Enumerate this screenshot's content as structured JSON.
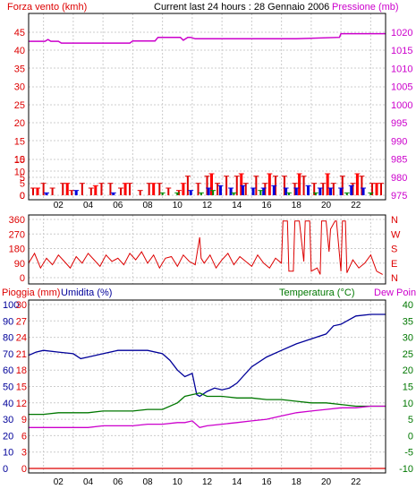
{
  "colors": {
    "wind": "#dd0000",
    "gust": "#ff0000",
    "wind_avg": "#0000dd",
    "wind_low": "#008800",
    "pressure": "#cc00cc",
    "direction": "#dd0000",
    "rain": "#dd0000",
    "humidity": "#000099",
    "temperature": "#007700",
    "dewpoint": "#cc00cc",
    "grid": "#cccccc",
    "axis": "#000000"
  },
  "chart_data": [
    {
      "type": "line",
      "header_left": "Forza vento (kmh)",
      "title": "Current last 24 hours : 28 Gennaio 2006",
      "header_right": "Pressione (mb)",
      "x_ticks": [
        "02",
        "04",
        "06",
        "08",
        "10",
        "12",
        "14",
        "16",
        "18",
        "20",
        "22"
      ],
      "x_tick_hours": [
        2,
        4,
        6,
        8,
        10,
        12,
        14,
        16,
        18,
        20,
        22
      ],
      "xlim_hours": [
        0,
        24
      ],
      "grid": true,
      "left_axis": {
        "label": "Forza vento (kmh)",
        "segments": [
          {
            "ticks": [
              "0",
              "5",
              "10",
              "15",
              "20",
              "25",
              "30",
              "35",
              "40",
              "45"
            ],
            "tick_values": [
              0,
              5,
              10,
              15,
              20,
              25,
              30,
              35,
              40,
              45
            ]
          },
          {
            "ticks": [
              "0",
              "5",
              "10",
              "15"
            ],
            "tick_values": [
              0,
              5,
              10,
              15
            ]
          }
        ],
        "ylim": [
          0,
          45
        ]
      },
      "right_axis": {
        "label": "Pressione (mb)",
        "ticks": [
          "1020",
          "1015",
          "1010",
          "1005",
          "1000",
          "995",
          "990",
          "985",
          "980",
          "975"
        ],
        "tick_values": [
          1020,
          1015,
          1010,
          1005,
          1000,
          995,
          990,
          985,
          980,
          975
        ],
        "ylim": [
          975,
          1020
        ]
      },
      "series": [
        {
          "key": "pressure",
          "axis": "right",
          "x": [
            0,
            1.1,
            1.3,
            1.5,
            2.0,
            2.2,
            6.8,
            7.0,
            8.5,
            8.7,
            10.2,
            10.4,
            10.7,
            10.9,
            11.2,
            18.0,
            20.9,
            21.0,
            24
          ],
          "y": [
            1017.5,
            1017.5,
            1018,
            1017.5,
            1017.5,
            1017,
            1017,
            1017.6,
            1017.6,
            1018.6,
            1018.6,
            1017.8,
            1018.6,
            1018.6,
            1018.2,
            1018.2,
            1018.6,
            1019.6,
            1019.6
          ]
        },
        {
          "key": "wind",
          "axis": "left",
          "style": "bars",
          "x": [
            0.3,
            1.0,
            1.6,
            2.3,
            2.9,
            3.6,
            4.2,
            4.9,
            5.5,
            6.2,
            6.8,
            7.5,
            8.1,
            8.8,
            9.4,
            10.1,
            10.7,
            11.4,
            12.0,
            12.7,
            13.3,
            14.0,
            14.6,
            15.3,
            15.9,
            16.6,
            17.2,
            17.9,
            18.5,
            19.2,
            19.8,
            20.5,
            21.1,
            21.8,
            22.4,
            23.1,
            23.7
          ],
          "y": [
            3,
            5,
            3,
            5,
            2,
            5,
            3,
            5,
            5,
            3,
            5,
            2,
            5,
            5,
            3,
            2,
            8,
            5,
            8,
            5,
            8,
            8,
            5,
            8,
            5,
            8,
            8,
            5,
            8,
            5,
            5,
            5,
            8,
            5,
            8,
            5,
            5
          ]
        },
        {
          "key": "gust",
          "axis": "left",
          "style": "bars",
          "x": [
            0.6,
            2.6,
            4.5,
            6.5,
            8.4,
            10.4,
            12.3,
            14.3,
            16.2,
            18.2,
            20.1,
            22.1,
            23.4
          ],
          "y": [
            3,
            5,
            4,
            5,
            5,
            5,
            9,
            9,
            9,
            9,
            9,
            9,
            5
          ]
        },
        {
          "key": "wind_avg",
          "axis": "left",
          "style": "bars",
          "x": [
            1.2,
            3.2,
            5.7,
            10.9,
            12.1,
            12.9,
            13.6,
            14.4,
            15.1,
            15.8,
            16.5,
            17.3,
            18.0,
            18.8,
            19.6,
            20.3,
            21.0,
            21.7,
            22.5
          ],
          "y": [
            1,
            2,
            1,
            2,
            3,
            4,
            3,
            4,
            3,
            3,
            4,
            3,
            3,
            4,
            3,
            3,
            3,
            4,
            3
          ]
        },
        {
          "key": "wind_low",
          "axis": "left",
          "style": "bars",
          "x": [
            9.0,
            10.0,
            11.6,
            12.4,
            13.8,
            15.6,
            17.5,
            19.3,
            21.4,
            23.0
          ],
          "y": [
            1,
            1,
            1,
            2,
            1,
            2,
            1,
            1,
            1,
            1
          ]
        }
      ]
    },
    {
      "type": "line",
      "xlim_hours": [
        0,
        24
      ],
      "grid": true,
      "left_axis": {
        "ticks": [
          "360",
          "270",
          "180",
          "90",
          "0"
        ],
        "tick_values": [
          360,
          270,
          180,
          90,
          0
        ],
        "ylim": [
          0,
          360
        ]
      },
      "right_axis": {
        "ticks": [
          "N",
          "W",
          "S",
          "E",
          "N"
        ],
        "tick_values": [
          360,
          270,
          180,
          90,
          0
        ]
      },
      "series": [
        {
          "key": "direction",
          "axis": "left",
          "x": [
            0,
            0.4,
            0.8,
            1.2,
            1.6,
            2.0,
            2.4,
            2.8,
            3.2,
            3.6,
            4.0,
            4.4,
            4.8,
            5.2,
            5.6,
            6.0,
            6.4,
            6.8,
            7.2,
            7.6,
            8.0,
            8.4,
            8.8,
            9.2,
            9.6,
            10.0,
            10.4,
            10.8,
            11.2,
            11.5,
            11.6,
            11.8,
            12.2,
            12.6,
            13.0,
            13.4,
            13.8,
            14.2,
            14.6,
            15.0,
            15.4,
            15.8,
            16.2,
            16.6,
            17.0,
            17.1,
            17.4,
            17.5,
            17.8,
            17.9,
            18.2,
            18.5,
            18.6,
            18.9,
            19.0,
            19.4,
            19.6,
            19.7,
            20.0,
            20.2,
            20.3,
            20.6,
            20.7,
            21.0,
            21.1,
            21.3,
            21.4,
            21.8,
            22.2,
            22.6,
            23.0,
            23.4,
            23.8
          ],
          "y": [
            90,
            150,
            60,
            120,
            80,
            140,
            100,
            60,
            130,
            90,
            150,
            110,
            70,
            140,
            100,
            120,
            80,
            150,
            110,
            160,
            90,
            140,
            60,
            120,
            130,
            70,
            140,
            100,
            80,
            250,
            120,
            90,
            140,
            60,
            110,
            150,
            80,
            130,
            100,
            70,
            140,
            90,
            60,
            120,
            90,
            350,
            350,
            40,
            40,
            350,
            350,
            100,
            350,
            350,
            40,
            60,
            20,
            350,
            350,
            160,
            300,
            350,
            350,
            40,
            350,
            350,
            30,
            110,
            60,
            90,
            140,
            40,
            20
          ]
        }
      ]
    },
    {
      "type": "line",
      "header_left": "Pioggia (mm)",
      "header_left2": "Umidita (%)",
      "header_right": "Temperatura (°C)",
      "header_right2": "Dew Point",
      "x_ticks": [
        "02",
        "04",
        "06",
        "08",
        "10",
        "12",
        "14",
        "16",
        "18",
        "20",
        "22"
      ],
      "x_tick_hours": [
        2,
        4,
        6,
        8,
        10,
        12,
        14,
        16,
        18,
        20,
        22
      ],
      "xlim_hours": [
        0,
        24
      ],
      "grid": true,
      "rain_axis": {
        "label": "Pioggia (mm)",
        "ticks": [
          "30",
          "27",
          "24",
          "21",
          "18",
          "15",
          "12",
          "9",
          "6",
          "3",
          "0"
        ],
        "tick_values": [
          30,
          27,
          24,
          21,
          18,
          15,
          12,
          9,
          6,
          3,
          0
        ],
        "ylim": [
          0,
          30
        ]
      },
      "humidity_axis": {
        "label": "Umidita (%)",
        "ticks": [
          "100",
          "90",
          "80",
          "70",
          "60",
          "50",
          "40",
          "30",
          "20",
          "10",
          "0"
        ],
        "tick_values": [
          100,
          90,
          80,
          70,
          60,
          50,
          40,
          30,
          20,
          10,
          0
        ],
        "ylim": [
          0,
          100
        ]
      },
      "right_axis": {
        "label": "Temperatura (°C)",
        "ticks": [
          "40",
          "35",
          "30",
          "25",
          "20",
          "15",
          "10",
          "5",
          "0",
          "-5",
          "-10"
        ],
        "tick_values": [
          40,
          35,
          30,
          25,
          20,
          15,
          10,
          5,
          0,
          -5,
          -10
        ],
        "ylim": [
          -10,
          40
        ]
      },
      "series": [
        {
          "key": "humidity",
          "axis": "humidity",
          "x": [
            0,
            0.5,
            1.0,
            2.0,
            3.0,
            3.5,
            4.0,
            5.0,
            6.0,
            7.0,
            8.0,
            9.0,
            9.5,
            10.0,
            10.5,
            11.0,
            11.3,
            11.5,
            12.0,
            12.5,
            13.0,
            13.5,
            14.0,
            15.0,
            16.0,
            17.0,
            18.0,
            19.0,
            20.0,
            20.5,
            21.0,
            22.0,
            23.0,
            24.0
          ],
          "y": [
            69,
            71,
            72,
            71,
            70,
            67,
            68,
            70,
            72,
            72,
            72,
            70,
            66,
            60,
            56,
            58,
            45,
            44,
            47,
            49,
            48,
            49,
            52,
            62,
            68,
            72,
            76,
            79,
            82,
            87,
            88,
            93,
            94,
            94
          ]
        },
        {
          "key": "temperature",
          "axis": "right",
          "x": [
            0,
            1,
            2,
            3,
            4,
            5,
            6,
            7,
            8,
            9,
            10,
            10.5,
            11,
            11.5,
            12,
            13,
            14,
            15,
            16,
            17,
            18,
            19,
            20,
            21,
            22,
            23,
            24
          ],
          "y": [
            6.5,
            6.5,
            7,
            7,
            7,
            7.5,
            7.5,
            7.5,
            8,
            8,
            10,
            12,
            12.5,
            13,
            12,
            12,
            11.5,
            11.5,
            11,
            11,
            10.5,
            10,
            10,
            9.5,
            9,
            9,
            9
          ]
        },
        {
          "key": "dewpoint",
          "axis": "right",
          "x": [
            0,
            1,
            2,
            3,
            4,
            5,
            6,
            7,
            8,
            9,
            10,
            10.5,
            11,
            11.5,
            12,
            13,
            14,
            15,
            16,
            17,
            18,
            19,
            20,
            21,
            22,
            23,
            24
          ],
          "y": [
            2.5,
            2.5,
            2.5,
            2.5,
            2.5,
            3,
            3,
            3,
            3.5,
            3.5,
            4,
            4,
            4.5,
            2.5,
            3,
            3.5,
            4,
            4.5,
            5,
            6,
            7,
            7.5,
            8,
            8.5,
            8.5,
            9,
            9
          ]
        },
        {
          "key": "rain",
          "axis": "rain",
          "x": [
            0,
            24
          ],
          "y": [
            0,
            0
          ]
        }
      ]
    }
  ]
}
